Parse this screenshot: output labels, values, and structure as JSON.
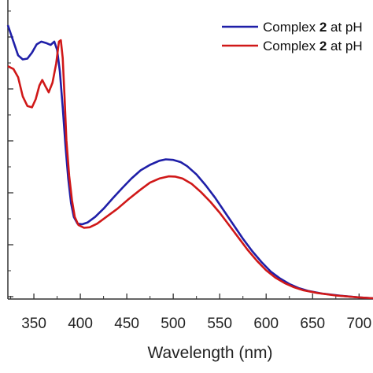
{
  "chart_data": {
    "type": "line",
    "xlabel": "Wavelength (nm)",
    "ylabel": "",
    "xlim": [
      322,
      715
    ],
    "ylim": [
      0,
      1.0
    ],
    "x_ticks": [
      "350",
      "400",
      "450",
      "500",
      "550",
      "600",
      "650",
      "700"
    ],
    "grid": false,
    "legend_position": "top-right",
    "series": [
      {
        "name_prefix": "Complex ",
        "name_bold": "2",
        "name_suffix": " at pH",
        "color": "#1f1fa8",
        "points": [
          [
            322,
            1.0
          ],
          [
            328,
            0.94
          ],
          [
            333,
            0.89
          ],
          [
            338,
            0.875
          ],
          [
            343,
            0.878
          ],
          [
            348,
            0.9
          ],
          [
            353,
            0.93
          ],
          [
            358,
            0.94
          ],
          [
            363,
            0.935
          ],
          [
            368,
            0.928
          ],
          [
            372,
            0.94
          ],
          [
            375,
            0.91
          ],
          [
            378,
            0.83
          ],
          [
            381,
            0.7
          ],
          [
            384,
            0.56
          ],
          [
            387,
            0.44
          ],
          [
            390,
            0.35
          ],
          [
            393,
            0.3
          ],
          [
            397,
            0.275
          ],
          [
            402,
            0.273
          ],
          [
            408,
            0.28
          ],
          [
            416,
            0.3
          ],
          [
            425,
            0.33
          ],
          [
            435,
            0.368
          ],
          [
            445,
            0.405
          ],
          [
            455,
            0.44
          ],
          [
            465,
            0.47
          ],
          [
            475,
            0.49
          ],
          [
            485,
            0.505
          ],
          [
            492,
            0.51
          ],
          [
            500,
            0.508
          ],
          [
            508,
            0.5
          ],
          [
            515,
            0.485
          ],
          [
            525,
            0.455
          ],
          [
            535,
            0.415
          ],
          [
            545,
            0.37
          ],
          [
            555,
            0.32
          ],
          [
            565,
            0.27
          ],
          [
            575,
            0.22
          ],
          [
            585,
            0.175
          ],
          [
            595,
            0.135
          ],
          [
            605,
            0.1
          ],
          [
            615,
            0.075
          ],
          [
            625,
            0.055
          ],
          [
            635,
            0.04
          ],
          [
            645,
            0.03
          ],
          [
            660,
            0.02
          ],
          [
            680,
            0.012
          ],
          [
            700,
            0.006
          ],
          [
            715,
            0.003
          ]
        ]
      },
      {
        "name_prefix": "Complex ",
        "name_bold": "2",
        "name_suffix": " at pH",
        "color": "#d01818",
        "points": [
          [
            322,
            0.85
          ],
          [
            328,
            0.84
          ],
          [
            333,
            0.81
          ],
          [
            338,
            0.74
          ],
          [
            343,
            0.705
          ],
          [
            348,
            0.7
          ],
          [
            352,
            0.73
          ],
          [
            356,
            0.78
          ],
          [
            359,
            0.8
          ],
          [
            362,
            0.78
          ],
          [
            366,
            0.755
          ],
          [
            370,
            0.79
          ],
          [
            374,
            0.86
          ],
          [
            377,
            0.94
          ],
          [
            379,
            0.945
          ],
          [
            381,
            0.88
          ],
          [
            383,
            0.74
          ],
          [
            385,
            0.58
          ],
          [
            388,
            0.45
          ],
          [
            391,
            0.36
          ],
          [
            394,
            0.3
          ],
          [
            398,
            0.27
          ],
          [
            404,
            0.26
          ],
          [
            410,
            0.262
          ],
          [
            418,
            0.275
          ],
          [
            428,
            0.3
          ],
          [
            440,
            0.33
          ],
          [
            452,
            0.365
          ],
          [
            465,
            0.4
          ],
          [
            475,
            0.425
          ],
          [
            485,
            0.44
          ],
          [
            495,
            0.448
          ],
          [
            502,
            0.447
          ],
          [
            510,
            0.44
          ],
          [
            520,
            0.42
          ],
          [
            530,
            0.39
          ],
          [
            540,
            0.355
          ],
          [
            550,
            0.315
          ],
          [
            560,
            0.27
          ],
          [
            570,
            0.225
          ],
          [
            580,
            0.18
          ],
          [
            590,
            0.14
          ],
          [
            600,
            0.105
          ],
          [
            610,
            0.078
          ],
          [
            620,
            0.058
          ],
          [
            630,
            0.043
          ],
          [
            640,
            0.032
          ],
          [
            655,
            0.022
          ],
          [
            675,
            0.013
          ],
          [
            700,
            0.006
          ],
          [
            715,
            0.003
          ]
        ]
      }
    ]
  }
}
